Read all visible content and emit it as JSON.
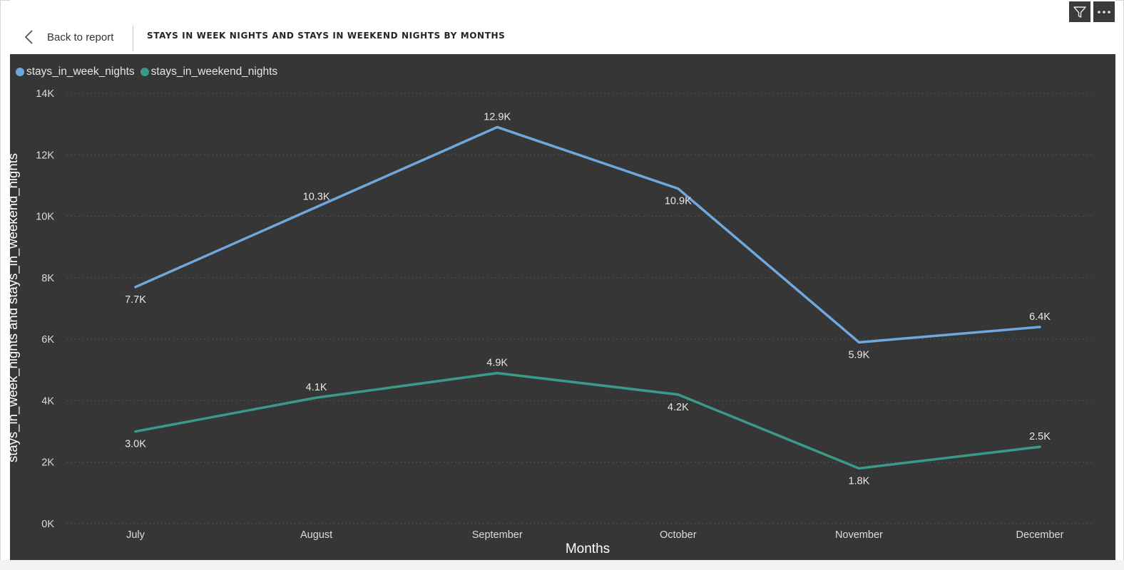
{
  "header": {
    "back_label": "Back to report",
    "title": "STAYS IN WEEK NIGHTS AND STAYS IN WEEKEND NIGHTS BY MONTHS"
  },
  "toolbar": {
    "filter_icon": "filter-icon",
    "more_icon": "more-options-icon"
  },
  "colors": {
    "chart_background": "#363636",
    "week_nights": "#6fa8dc",
    "weekend_nights": "#3a9a8a"
  },
  "chart_data": {
    "type": "line",
    "categories": [
      "July",
      "August",
      "September",
      "October",
      "November",
      "December"
    ],
    "series": [
      {
        "name": "stays_in_week_nights",
        "values": [
          7700,
          10300,
          12900,
          10900,
          5900,
          6400
        ],
        "labels": [
          "7.7K",
          "10.3K",
          "12.9K",
          "10.9K",
          "5.9K",
          "6.4K"
        ],
        "color": "#6fa8dc"
      },
      {
        "name": "stays_in_weekend_nights",
        "values": [
          3000,
          4100,
          4900,
          4200,
          1800,
          2500
        ],
        "labels": [
          "3.0K",
          "4.1K",
          "4.9K",
          "4.2K",
          "1.8K",
          "2.5K"
        ],
        "color": "#3a9a8a"
      }
    ],
    "xlabel": "Months",
    "ylabel": "stays_in_week_nights and stays_in_weekend_nights",
    "ylim": [
      0,
      14000
    ],
    "yticks": [
      0,
      2000,
      4000,
      6000,
      8000,
      10000,
      12000,
      14000
    ],
    "ytick_labels": [
      "0K",
      "2K",
      "4K",
      "6K",
      "8K",
      "10K",
      "12K",
      "14K"
    ],
    "grid": true,
    "legend_position": "top-left"
  }
}
